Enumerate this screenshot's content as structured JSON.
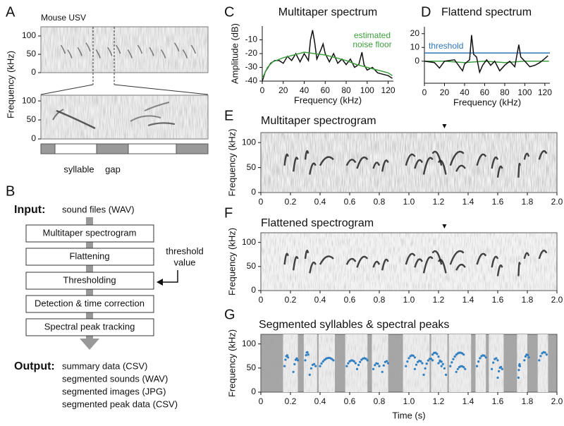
{
  "panel_a": {
    "label": "A",
    "title": "Mouse USV",
    "ylabel": "Frequency (kHz)",
    "overview": {
      "ylim": [
        0,
        125
      ],
      "yticks": [
        0,
        50,
        100
      ]
    },
    "zoom": {
      "ylim": [
        0,
        115
      ],
      "yticks": [
        0,
        50,
        100
      ]
    },
    "segment_labels": [
      "syllable",
      "gap"
    ]
  },
  "panel_b": {
    "label": "B",
    "input_label": "Input:",
    "input": "sound files (WAV)",
    "steps": [
      "Multitaper spectrogram",
      "Flattening",
      "Thresholding",
      "Detection & time correction",
      "Spectral peak tracking"
    ],
    "side_note": [
      "threshold",
      "value"
    ],
    "output_label": "Output:",
    "outputs": [
      "summary data (CSV)",
      "segmented sounds (WAV)",
      "segmented images (JPG)",
      "segmented peak data (CSV)"
    ]
  },
  "chart_data": [
    {
      "label": "C",
      "type": "line",
      "title": "Multitaper spectrum",
      "xlabel": "Frequency (kHz)",
      "ylabel": "Amplitude (dB)",
      "xlim": [
        0,
        125
      ],
      "xticks": [
        0,
        20,
        40,
        60,
        80,
        100,
        120
      ],
      "ylim": [
        -40,
        0
      ],
      "yticks": [
        -40,
        -30,
        -20,
        -10
      ],
      "annotation": [
        "estimated",
        "noise floor"
      ],
      "series": [
        {
          "color": "#111111",
          "x": [
            0,
            3,
            8,
            12,
            16,
            20,
            24,
            28,
            32,
            36,
            40,
            44,
            46,
            48,
            50,
            52,
            56,
            58,
            60,
            64,
            68,
            72,
            76,
            80,
            84,
            88,
            92,
            95,
            97,
            100,
            105,
            110,
            115,
            120,
            124
          ],
          "values": [
            -40,
            -33,
            -27,
            -25,
            -25,
            -27,
            -22,
            -25,
            -20,
            -26,
            -20,
            -25,
            -10,
            -3,
            -12,
            -24,
            -17,
            -13,
            -20,
            -26,
            -20,
            -27,
            -24,
            -28,
            -24,
            -30,
            -28,
            -19,
            -28,
            -32,
            -30,
            -34,
            -35,
            -36,
            -38
          ]
        },
        {
          "color": "#3d9e3d",
          "x": [
            0,
            5,
            10,
            20,
            30,
            40,
            50,
            60,
            70,
            80,
            90,
            100,
            110,
            120,
            124
          ],
          "values": [
            -38,
            -30,
            -26,
            -23,
            -21,
            -19,
            -20,
            -21,
            -23,
            -25,
            -28,
            -30,
            -32,
            -34,
            -36
          ]
        }
      ]
    },
    {
      "label": "D",
      "type": "line",
      "title": "Flattend spectrum",
      "xlabel": "Frequency (kHz)",
      "xlim": [
        0,
        125
      ],
      "xticks": [
        0,
        20,
        40,
        60,
        80,
        100,
        120
      ],
      "ylim": [
        -16,
        25
      ],
      "yticks": [
        0,
        10,
        20
      ],
      "threshold": 6,
      "threshold_label": "threshold",
      "threshold_color": "#2e75b6",
      "series": [
        {
          "color": "#3d9e3d",
          "x": [
            0,
            20,
            40,
            60,
            80,
            100,
            124
          ],
          "values": [
            0,
            0,
            -1,
            0,
            -1,
            0,
            0
          ]
        },
        {
          "color": "#111111",
          "x": [
            0,
            10,
            15,
            20,
            30,
            35,
            38,
            40,
            45,
            47,
            49,
            52,
            55,
            58,
            62,
            66,
            70,
            75,
            80,
            85,
            90,
            94,
            96,
            100,
            105,
            110,
            115,
            120,
            123
          ],
          "values": [
            0,
            -1,
            -5,
            0,
            1,
            -4,
            -7,
            -2,
            1,
            19,
            5,
            3,
            -8,
            -3,
            1,
            -3,
            0,
            -7,
            -3,
            0,
            -4,
            12,
            3,
            0,
            -4,
            -3,
            -1,
            2,
            4
          ]
        }
      ]
    },
    {
      "label": "E",
      "type": "spectrogram",
      "title": "Multitaper spectrogram",
      "ylabel": "Frequency (kHz)",
      "xlim": [
        0,
        2
      ],
      "xticks": [
        0,
        0.2,
        0.4,
        0.6,
        0.8,
        {
          "value": 1,
          "label": "1.0"
        },
        1.2,
        1.4,
        1.6,
        1.8,
        {
          "value": 2,
          "label": "2.0"
        }
      ],
      "ylim": [
        0,
        120
      ],
      "yticks": [
        0,
        50,
        100
      ],
      "marker_time": 1.24
    },
    {
      "label": "F",
      "type": "spectrogram",
      "title": "Flattened spectrogram",
      "ylabel": "Frequency (kHz)",
      "xlim": [
        0,
        2
      ],
      "xticks": [
        0,
        0.2,
        0.4,
        0.6,
        0.8,
        {
          "value": 1,
          "label": "1.0"
        },
        1.2,
        1.4,
        1.6,
        1.8,
        {
          "value": 2,
          "label": "2.0"
        }
      ],
      "ylim": [
        0,
        120
      ],
      "yticks": [
        0,
        50,
        100
      ],
      "marker_time": 1.24
    },
    {
      "label": "G",
      "type": "segmented",
      "title": "Segmented syllables & spectral peaks",
      "ylabel": "Frequency (kHz)",
      "xlabel": "Time (s)",
      "xlim": [
        0,
        2
      ],
      "xticks": [
        0,
        0.2,
        0.4,
        0.6,
        0.8,
        {
          "value": 1,
          "label": "1.0"
        },
        1.2,
        1.4,
        1.6,
        1.8,
        {
          "value": 2,
          "label": "2.0"
        }
      ],
      "ylim": [
        0,
        120
      ],
      "yticks": [
        0,
        50,
        100
      ]
    }
  ]
}
